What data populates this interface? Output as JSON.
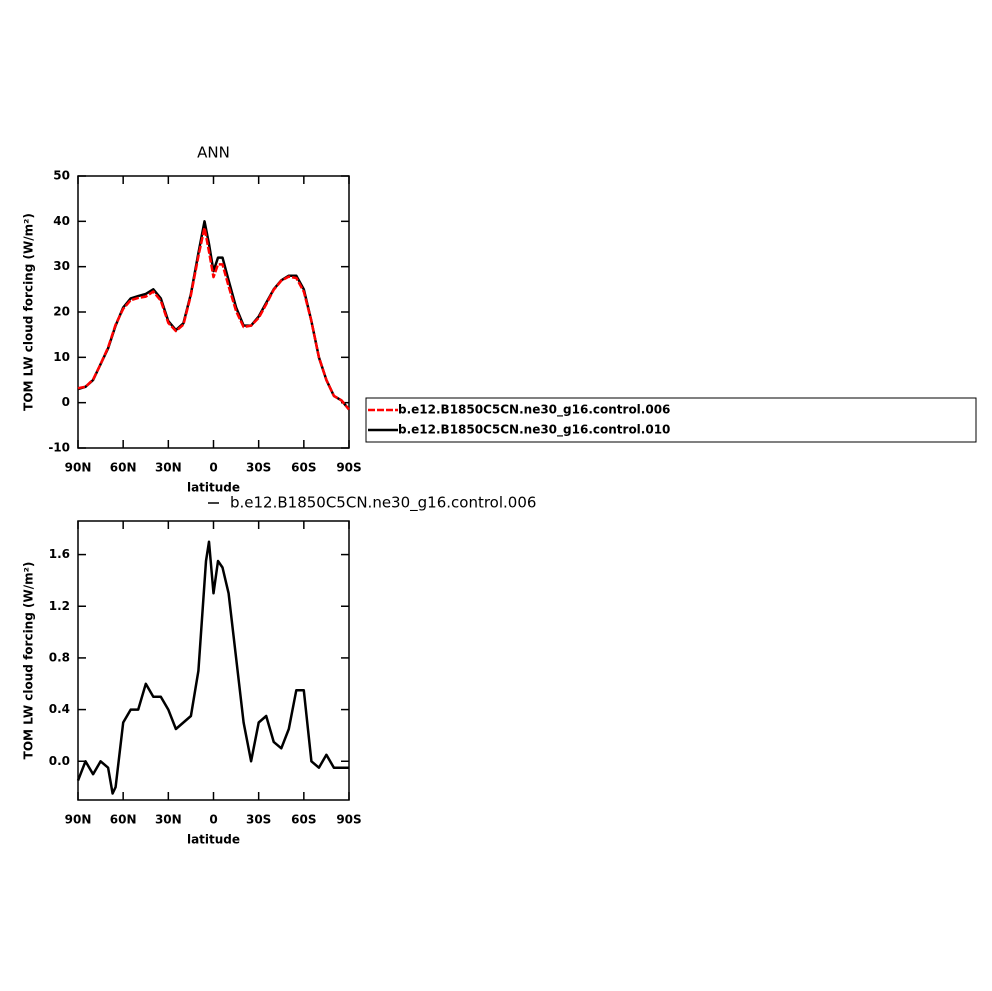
{
  "chart_data": [
    {
      "type": "line",
      "title": "ANN",
      "x_label": "latitude",
      "y_label": "TOM LW cloud forcing (W/m²)",
      "x": [
        90,
        85,
        80,
        75,
        70,
        65,
        60,
        55,
        50,
        45,
        40,
        35,
        30,
        25,
        20,
        15,
        10,
        6,
        3,
        0,
        -3,
        -6,
        -10,
        -15,
        -20,
        -25,
        -30,
        -35,
        -40,
        -45,
        -50,
        -55,
        -60,
        -65,
        -70,
        -75,
        -80,
        -85,
        -90
      ],
      "series": [
        {
          "name": "b.e12.B1850C5CN.ne30_g16.control.006",
          "color": "#ff0000",
          "dashed": true,
          "values": [
            3.2,
            3.5,
            5.1,
            8.5,
            12.2,
            17.2,
            20.7,
            22.6,
            23.1,
            23.4,
            24.5,
            22.5,
            17.6,
            15.8,
            17.2,
            23.7,
            32.3,
            38.6,
            33.3,
            27.7,
            30.5,
            30.5,
            25.7,
            20.2,
            16.7,
            17,
            18.7,
            21.7,
            24.9,
            26.9,
            27.8,
            27.5,
            24.5,
            18,
            10,
            5,
            1.5,
            0.5,
            -1.5
          ]
        },
        {
          "name": "b.e12.B1850C5CN.ne30_g16.control.010",
          "color": "#000000",
          "dashed": false,
          "values": [
            3,
            3.5,
            5,
            8.5,
            12,
            17,
            21,
            23,
            23.5,
            24,
            25,
            23,
            18,
            16,
            17.5,
            24,
            33,
            40,
            35,
            29,
            32,
            32,
            27,
            21,
            17,
            17,
            19,
            22,
            25,
            27,
            28,
            28,
            25,
            18,
            10,
            5,
            1.5,
            0.5,
            -1.5
          ]
        }
      ],
      "xlim": [
        90,
        -90
      ],
      "xticks": [
        {
          "value": 90,
          "label": "90N"
        },
        {
          "value": 60,
          "label": "60N"
        },
        {
          "value": 30,
          "label": "30N"
        },
        0,
        {
          "value": -30,
          "label": "30S"
        },
        {
          "value": -60,
          "label": "60S"
        },
        {
          "value": -90,
          "label": "90S"
        }
      ],
      "ylim": [
        -10,
        50
      ],
      "yticks": [
        -10,
        0,
        10,
        20,
        30,
        40,
        50
      ],
      "legend": "right"
    },
    {
      "type": "line",
      "x_label": "latitude",
      "y_label": "TOM LW cloud forcing (W/m²)",
      "x": [
        90,
        85,
        80,
        75,
        70,
        67,
        65,
        60,
        55,
        50,
        45,
        40,
        35,
        30,
        25,
        20,
        15,
        10,
        5,
        3,
        0,
        -3,
        -6,
        -10,
        -15,
        -20,
        -25,
        -30,
        -35,
        -40,
        -45,
        -50,
        -55,
        -60,
        -65,
        -70,
        -75,
        -80,
        -85,
        -90
      ],
      "series": [
        {
          "name": "b.e12.B1850C5CN.ne30_g16.control.006",
          "color": "#000000",
          "dashed": false,
          "values": [
            -0.15,
            0,
            -0.1,
            0,
            -0.05,
            -0.25,
            -0.2,
            0.3,
            0.4,
            0.4,
            0.6,
            0.5,
            0.5,
            0.4,
            0.25,
            0.3,
            0.35,
            0.7,
            1.55,
            1.7,
            1.3,
            1.55,
            1.5,
            1.3,
            0.8,
            0.3,
            0.0,
            0.3,
            0.35,
            0.15,
            0.1,
            0.25,
            0.55,
            0.55,
            0.0,
            -0.05,
            0.05,
            -0.05,
            -0.05,
            -0.05
          ]
        }
      ],
      "xlim": [
        90,
        -90
      ],
      "xticks": [
        {
          "value": 90,
          "label": "90N"
        },
        {
          "value": 60,
          "label": "60N"
        },
        {
          "value": 30,
          "label": "30N"
        },
        0,
        {
          "value": -30,
          "label": "30S"
        },
        {
          "value": -60,
          "label": "60S"
        },
        {
          "value": -90,
          "label": "90S"
        }
      ],
      "ylim": [
        -0.3,
        1.86
      ],
      "yticks": [
        {
          "value": 0,
          "label": "0.0"
        },
        0.4,
        0.8,
        1.2,
        1.6
      ],
      "legend": "top"
    }
  ]
}
